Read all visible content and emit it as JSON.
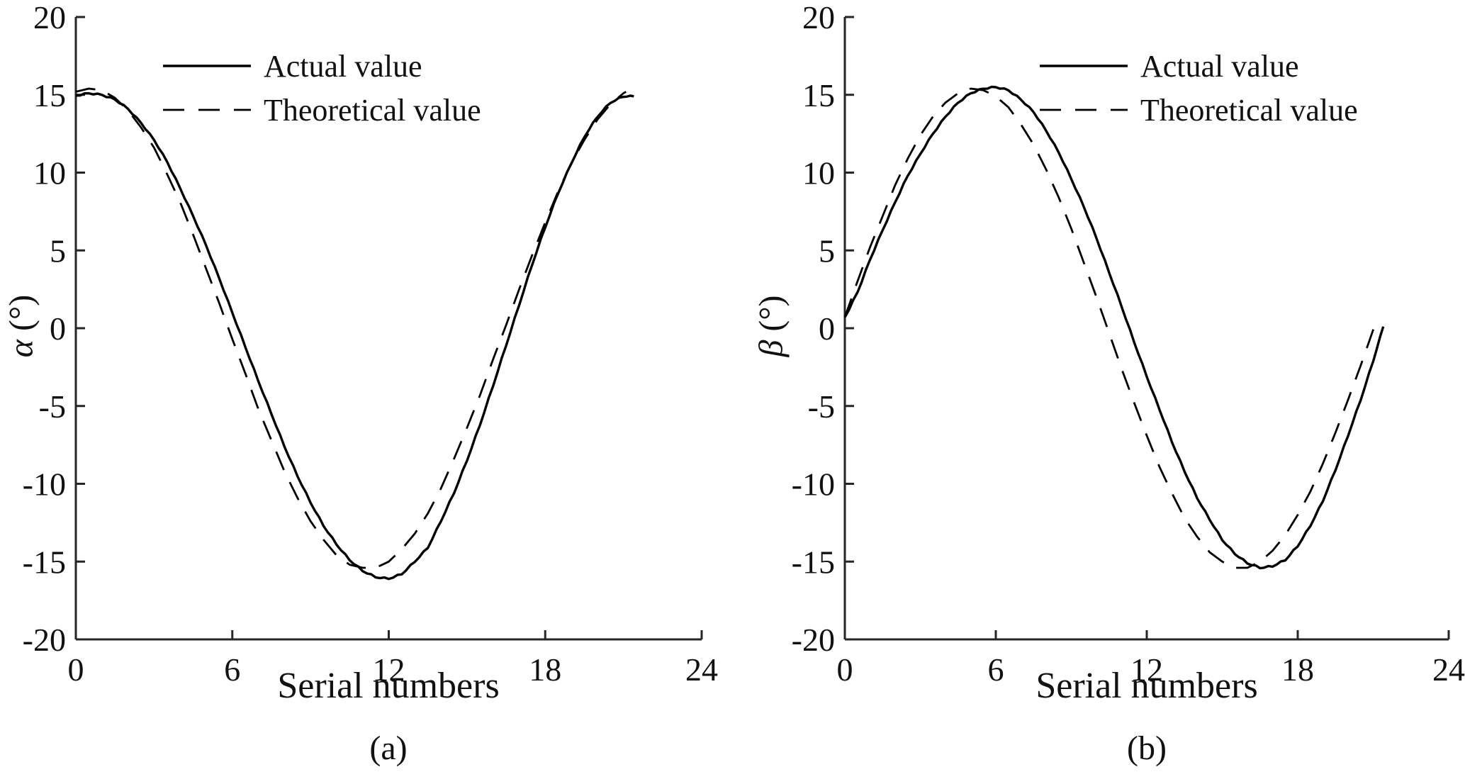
{
  "figure_title": "",
  "chart_data": [
    {
      "panel": "a",
      "type": "line",
      "caption": "(a)",
      "xlabel": "Serial numbers",
      "ylabel": "α (°)",
      "ylabel_symbol": "α",
      "ylabel_unit": " (°)",
      "xlim": [
        0,
        24
      ],
      "ylim": [
        -20,
        20
      ],
      "xticks": [
        0,
        6,
        12,
        18,
        24
      ],
      "yticks": [
        -20,
        -15,
        -10,
        -5,
        0,
        5,
        10,
        15,
        20
      ],
      "grid": false,
      "legend_position": "top-right-inside",
      "legend": [
        {
          "label": "Actual value",
          "style": "solid"
        },
        {
          "label": "Theoretical value",
          "style": "dashed"
        }
      ],
      "series": [
        {
          "name": "Actual value",
          "style": "solid",
          "x": [
            0,
            0.5,
            1,
            1.5,
            2,
            2.5,
            3,
            3.5,
            4,
            4.5,
            5,
            5.5,
            6,
            6.5,
            7,
            7.5,
            8,
            8.5,
            9,
            9.5,
            10,
            10.5,
            11,
            11.5,
            12,
            12.5,
            13,
            13.5,
            14,
            14.5,
            15,
            15.5,
            16,
            16.5,
            17,
            17.5,
            18,
            18.5,
            19,
            19.5,
            20,
            20.5,
            21,
            21.4
          ],
          "y": [
            14.95,
            15.1,
            15.0,
            14.7,
            14.1,
            13.2,
            12.1,
            10.7,
            9.0,
            7.2,
            5.3,
            3.2,
            1.0,
            -1.2,
            -3.4,
            -5.5,
            -7.6,
            -9.5,
            -11.2,
            -12.7,
            -13.9,
            -14.9,
            -15.6,
            -16.0,
            -16.1,
            -15.8,
            -15.0,
            -14.1,
            -12.4,
            -10.6,
            -8.5,
            -6.2,
            -3.7,
            -1.1,
            1.5,
            4.1,
            6.5,
            8.7,
            10.6,
            12.3,
            13.6,
            14.5,
            14.9,
            14.9
          ]
        },
        {
          "name": "Theoretical value",
          "style": "dashed",
          "x": [
            0,
            0.5,
            1,
            1.5,
            2,
            2.5,
            3,
            3.5,
            4,
            4.5,
            5,
            5.5,
            6,
            6.5,
            7,
            7.5,
            8,
            8.5,
            9,
            9.5,
            10,
            10.5,
            11,
            11.5,
            12,
            12.5,
            13,
            13.5,
            14,
            14.5,
            15,
            15.5,
            16,
            16.5,
            17,
            17.5,
            18,
            18.5,
            19,
            19.5,
            20,
            20.5,
            21,
            21.1
          ],
          "y": [
            15.2,
            15.4,
            15.3,
            14.8,
            14.0,
            12.9,
            11.6,
            9.9,
            8.1,
            6.0,
            3.8,
            1.6,
            -0.7,
            -2.9,
            -5.2,
            -7.2,
            -9.2,
            -10.9,
            -12.4,
            -13.6,
            -14.6,
            -15.2,
            -15.4,
            -15.4,
            -15.0,
            -14.2,
            -13.2,
            -11.9,
            -10.3,
            -8.4,
            -6.4,
            -4.3,
            -2.0,
            0.2,
            2.5,
            4.7,
            6.8,
            8.8,
            10.6,
            12.1,
            13.4,
            14.4,
            15.1,
            15.2
          ]
        }
      ]
    },
    {
      "panel": "b",
      "type": "line",
      "caption": "(b)",
      "xlabel": "Serial numbers",
      "ylabel": "β (°)",
      "ylabel_symbol": "β",
      "ylabel_unit": " (°)",
      "xlim": [
        0,
        24
      ],
      "ylim": [
        -20,
        20
      ],
      "xticks": [
        0,
        6,
        12,
        18,
        24
      ],
      "yticks": [
        -20,
        -15,
        -10,
        -5,
        0,
        5,
        10,
        15,
        20
      ],
      "grid": false,
      "legend_position": "top-right-inside",
      "legend": [
        {
          "label": "Actual value",
          "style": "solid"
        },
        {
          "label": "Theoretical value",
          "style": "dashed"
        }
      ],
      "series": [
        {
          "name": "Actual value",
          "style": "solid",
          "x": [
            0,
            0.5,
            1,
            1.5,
            2,
            2.5,
            3,
            3.5,
            4,
            4.5,
            5,
            5.5,
            6,
            6.5,
            7,
            7.5,
            8,
            8.5,
            9,
            9.5,
            10,
            10.5,
            11,
            11.5,
            12,
            12.5,
            13,
            13.5,
            14,
            14.5,
            15,
            15.5,
            16,
            16.5,
            17,
            17.5,
            18,
            18.5,
            19,
            19.5,
            20,
            20.5,
            21,
            21.4
          ],
          "y": [
            0.7,
            2.3,
            4.4,
            6.3,
            8.1,
            9.8,
            11.2,
            12.5,
            13.6,
            14.5,
            15.1,
            15.4,
            15.5,
            15.3,
            14.7,
            13.9,
            12.7,
            11.3,
            9.6,
            7.8,
            5.8,
            3.6,
            1.4,
            -0.9,
            -3.1,
            -5.2,
            -7.3,
            -9.2,
            -10.9,
            -12.3,
            -13.6,
            -14.5,
            -15.1,
            -15.4,
            -15.3,
            -14.9,
            -14.0,
            -12.7,
            -11.1,
            -9.1,
            -6.9,
            -4.6,
            -2.1,
            0.1
          ]
        },
        {
          "name": "Theoretical value",
          "style": "dashed",
          "x": [
            0,
            0.5,
            1,
            1.5,
            2,
            2.5,
            3,
            3.5,
            4,
            4.5,
            5,
            5.5,
            6,
            6.5,
            7,
            7.5,
            8,
            8.5,
            9,
            9.5,
            10,
            10.5,
            11,
            11.5,
            12,
            12.5,
            13,
            13.5,
            14,
            14.5,
            15,
            15.5,
            16,
            16.5,
            17,
            17.5,
            18,
            18.5,
            19,
            19.5,
            20,
            20.5,
            21,
            21.2
          ],
          "y": [
            0.7,
            3.0,
            5.2,
            7.2,
            9.2,
            10.9,
            12.4,
            13.6,
            14.5,
            15.1,
            15.4,
            15.3,
            14.9,
            14.2,
            13.1,
            11.8,
            10.2,
            8.4,
            6.4,
            4.2,
            2.0,
            -0.3,
            -2.6,
            -4.8,
            -6.9,
            -8.9,
            -10.6,
            -12.2,
            -13.4,
            -14.4,
            -15.0,
            -15.4,
            -15.4,
            -15.0,
            -14.3,
            -13.3,
            -12.0,
            -10.5,
            -8.7,
            -6.7,
            -4.6,
            -2.4,
            -0.1,
            0.6
          ]
        }
      ]
    }
  ],
  "colors": {
    "curve": "#000000",
    "axis": "#262626",
    "text": "#111111",
    "background": "#ffffff"
  }
}
